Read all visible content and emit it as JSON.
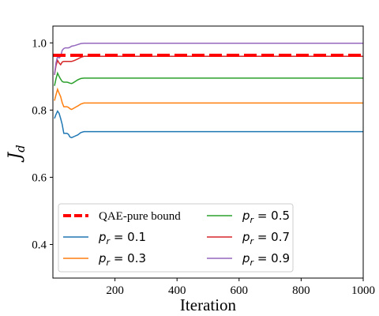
{
  "chart_data": {
    "type": "line",
    "xlabel": "Iteration",
    "ylabel": "J",
    "ylabel_subscript": "d",
    "xlim": [
      0,
      1000
    ],
    "ylim": [
      0.3,
      1.05
    ],
    "xticks": [
      200,
      400,
      600,
      800,
      1000
    ],
    "yticks": [
      0.4,
      0.6,
      0.8,
      1.0
    ],
    "xtick_labels": [
      "200",
      "400",
      "600",
      "800",
      "1000"
    ],
    "ytick_labels": [
      "0.4",
      "0.6",
      "0.8",
      "1.0"
    ],
    "grid": false,
    "legend_position": "lower-left",
    "legend_columns": 2,
    "bound": {
      "name": "QAE-pure bound",
      "value": 0.963,
      "color": "#ff0000"
    },
    "series": [
      {
        "name": "p_r = 0.1",
        "label_main": "p",
        "label_sub": "r",
        "label_rest": " = 0.1",
        "color": "#1f77b4",
        "x": [
          5,
          10,
          15,
          20,
          25,
          30,
          35,
          40,
          45,
          50,
          55,
          60,
          65,
          70,
          80,
          90,
          100,
          110,
          130,
          160,
          200,
          300,
          400,
          500,
          600,
          700,
          800,
          900,
          1000
        ],
        "y": [
          0.775,
          0.787,
          0.797,
          0.79,
          0.775,
          0.757,
          0.731,
          0.731,
          0.731,
          0.728,
          0.72,
          0.718,
          0.72,
          0.722,
          0.726,
          0.733,
          0.736,
          0.736,
          0.736,
          0.736,
          0.736,
          0.736,
          0.736,
          0.736,
          0.736,
          0.736,
          0.736,
          0.736,
          0.736
        ]
      },
      {
        "name": "p_r = 0.3",
        "label_main": "p",
        "label_sub": "r",
        "label_rest": " = 0.3",
        "color": "#ff7f0e",
        "x": [
          5,
          10,
          15,
          20,
          25,
          30,
          35,
          40,
          45,
          50,
          55,
          60,
          65,
          70,
          80,
          90,
          100,
          110,
          130,
          160,
          200,
          300,
          400,
          500,
          600,
          700,
          800,
          900,
          1000
        ],
        "y": [
          0.828,
          0.845,
          0.862,
          0.85,
          0.84,
          0.822,
          0.81,
          0.81,
          0.81,
          0.808,
          0.804,
          0.802,
          0.804,
          0.807,
          0.812,
          0.818,
          0.821,
          0.821,
          0.821,
          0.821,
          0.821,
          0.821,
          0.821,
          0.821,
          0.821,
          0.821,
          0.821,
          0.821,
          0.821
        ]
      },
      {
        "name": "p_r = 0.5",
        "label_main": "p",
        "label_sub": "r",
        "label_rest": " = 0.5",
        "color": "#2ca02c",
        "x": [
          5,
          10,
          15,
          20,
          25,
          30,
          35,
          40,
          45,
          50,
          55,
          60,
          65,
          70,
          80,
          90,
          100,
          110,
          130,
          160,
          200,
          300,
          400,
          500,
          600,
          700,
          800,
          900,
          1000
        ],
        "y": [
          0.872,
          0.893,
          0.91,
          0.9,
          0.892,
          0.885,
          0.883,
          0.883,
          0.883,
          0.882,
          0.88,
          0.879,
          0.881,
          0.884,
          0.89,
          0.894,
          0.895,
          0.895,
          0.895,
          0.895,
          0.895,
          0.895,
          0.895,
          0.895,
          0.895,
          0.895,
          0.895,
          0.895,
          0.895
        ]
      },
      {
        "name": "p_r = 0.7",
        "label_main": "p",
        "label_sub": "r",
        "label_rest": " = 0.7",
        "color": "#d62728",
        "x": [
          5,
          10,
          15,
          20,
          25,
          30,
          35,
          40,
          45,
          50,
          55,
          60,
          65,
          70,
          80,
          90,
          100,
          110,
          130,
          160,
          200,
          300,
          400,
          500,
          600,
          700,
          800,
          900,
          1000
        ],
        "y": [
          0.905,
          0.932,
          0.948,
          0.94,
          0.935,
          0.943,
          0.945,
          0.945,
          0.945,
          0.945,
          0.945,
          0.945,
          0.946,
          0.948,
          0.952,
          0.957,
          0.96,
          0.96,
          0.96,
          0.96,
          0.96,
          0.96,
          0.96,
          0.96,
          0.96,
          0.96,
          0.96,
          0.96,
          0.96
        ]
      },
      {
        "name": "p_r = 0.9",
        "label_main": "p",
        "label_sub": "r",
        "label_rest": " = 0.9",
        "color": "#9467bd",
        "x": [
          5,
          10,
          15,
          20,
          25,
          30,
          35,
          40,
          45,
          50,
          55,
          60,
          65,
          70,
          80,
          90,
          100,
          110,
          130,
          160,
          200,
          300,
          400,
          500,
          600,
          700,
          800,
          900,
          1000
        ],
        "y": [
          0.905,
          0.94,
          0.96,
          0.955,
          0.96,
          0.978,
          0.983,
          0.985,
          0.985,
          0.985,
          0.987,
          0.99,
          0.991,
          0.992,
          0.995,
          0.998,
          0.999,
          0.999,
          0.999,
          0.999,
          0.999,
          0.999,
          0.999,
          0.999,
          0.999,
          0.999,
          0.999,
          0.999,
          0.999
        ]
      }
    ]
  }
}
